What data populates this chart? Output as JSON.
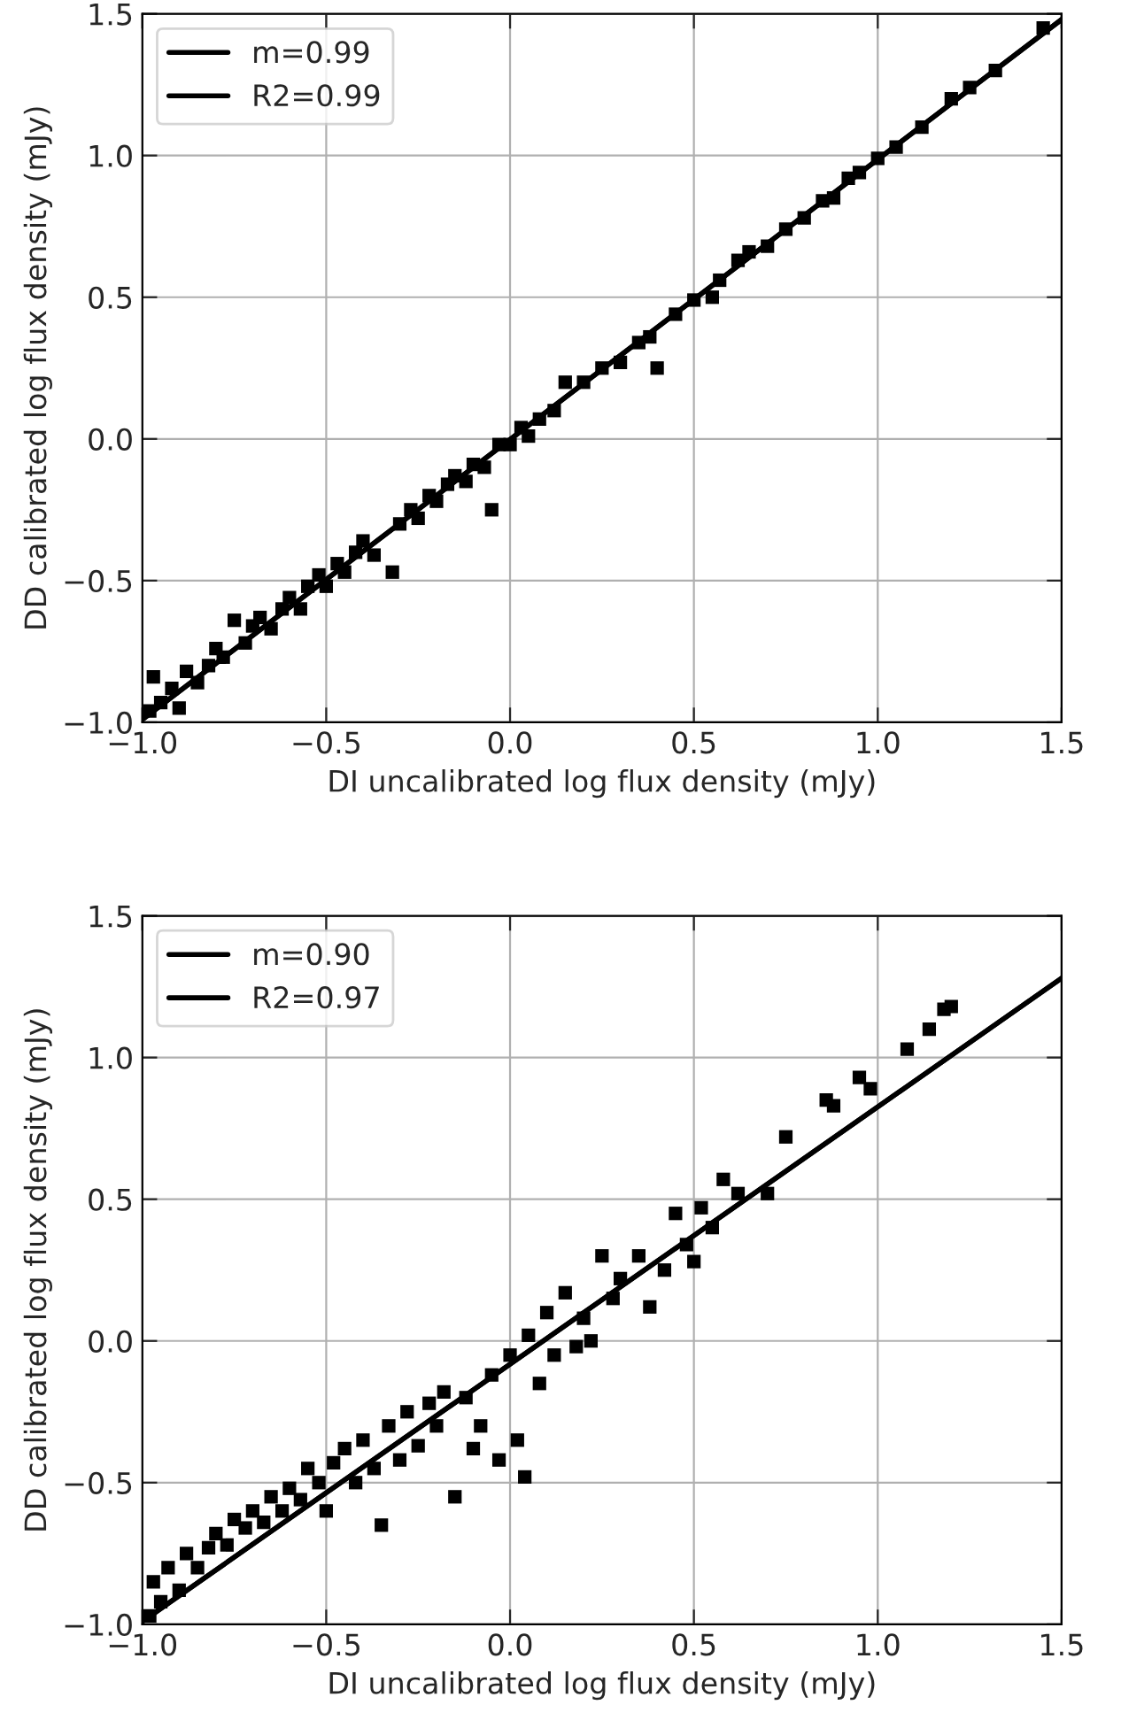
{
  "chart_data": [
    {
      "type": "scatter",
      "xlabel": "DI uncalibrated log flux density (mJy)",
      "ylabel": "DD calibrated log flux density (mJy)",
      "xlim": [
        -1.0,
        1.5
      ],
      "ylim": [
        -1.0,
        1.5
      ],
      "xticks": [
        {
          "value": -1.0,
          "label": "−1.0"
        },
        {
          "value": -0.5,
          "label": "−0.5"
        },
        {
          "value": 0.0,
          "label": "0.0"
        },
        {
          "value": 0.5,
          "label": "0.5"
        },
        {
          "value": 1.0,
          "label": "1.0"
        },
        {
          "value": 1.5,
          "label": "1.5"
        }
      ],
      "yticks": [
        {
          "value": -1.0,
          "label": "−1.0"
        },
        {
          "value": -0.5,
          "label": "−0.5"
        },
        {
          "value": 0.0,
          "label": "0.0"
        },
        {
          "value": 0.5,
          "label": "0.5"
        },
        {
          "value": 1.0,
          "label": "1.0"
        },
        {
          "value": 1.5,
          "label": "1.5"
        }
      ],
      "grid": true,
      "legend": "top left",
      "series": [
        {
          "marker": "square",
          "color": "#000000",
          "x": [
            -0.98,
            -0.97,
            -0.95,
            -0.92,
            -0.9,
            -0.88,
            -0.85,
            -0.82,
            -0.8,
            -0.78,
            -0.75,
            -0.72,
            -0.7,
            -0.68,
            -0.65,
            -0.62,
            -0.6,
            -0.57,
            -0.55,
            -0.52,
            -0.5,
            -0.47,
            -0.45,
            -0.42,
            -0.4,
            -0.37,
            -0.32,
            -0.3,
            -0.27,
            -0.25,
            -0.22,
            -0.2,
            -0.17,
            -0.15,
            -0.12,
            -0.1,
            -0.07,
            -0.05,
            -0.03,
            0.0,
            0.03,
            0.05,
            0.08,
            0.12,
            0.15,
            0.2,
            0.25,
            0.3,
            0.35,
            0.38,
            0.4,
            0.45,
            0.5,
            0.55,
            0.57,
            0.62,
            0.65,
            0.7,
            0.75,
            0.8,
            0.85,
            0.88,
            0.92,
            0.95,
            1.0,
            1.05,
            1.12,
            1.2,
            1.25,
            1.32,
            1.45
          ],
          "values": [
            -0.96,
            -0.84,
            -0.93,
            -0.88,
            -0.95,
            -0.82,
            -0.86,
            -0.8,
            -0.74,
            -0.77,
            -0.64,
            -0.72,
            -0.66,
            -0.63,
            -0.67,
            -0.6,
            -0.56,
            -0.6,
            -0.52,
            -0.48,
            -0.52,
            -0.44,
            -0.47,
            -0.4,
            -0.36,
            -0.41,
            -0.47,
            -0.3,
            -0.25,
            -0.28,
            -0.2,
            -0.22,
            -0.16,
            -0.13,
            -0.15,
            -0.09,
            -0.1,
            -0.25,
            -0.02,
            -0.02,
            0.04,
            0.01,
            0.07,
            0.1,
            0.2,
            0.2,
            0.25,
            0.27,
            0.34,
            0.36,
            0.25,
            0.44,
            0.49,
            0.5,
            0.56,
            0.63,
            0.66,
            0.68,
            0.74,
            0.78,
            0.84,
            0.85,
            0.92,
            0.94,
            0.99,
            1.03,
            1.1,
            1.2,
            1.24,
            1.3,
            1.45
          ]
        },
        {
          "type": "line",
          "name": "m=0.99",
          "color": "#000000",
          "x": [
            -1.0,
            1.5
          ],
          "values": [
            -0.99,
            1.48
          ]
        },
        {
          "type": "line",
          "name": "R2=0.99",
          "color": "#000000",
          "x": [
            -1.0,
            1.5
          ],
          "values": [
            -0.99,
            1.48
          ]
        }
      ]
    },
    {
      "type": "scatter",
      "xlabel": "DI uncalibrated log flux density (mJy)",
      "ylabel": "DD calibrated log flux density (mJy)",
      "xlim": [
        -1.0,
        1.5
      ],
      "ylim": [
        -1.0,
        1.5
      ],
      "xticks": [
        {
          "value": -1.0,
          "label": "−1.0"
        },
        {
          "value": -0.5,
          "label": "−0.5"
        },
        {
          "value": 0.0,
          "label": "0.0"
        },
        {
          "value": 0.5,
          "label": "0.5"
        },
        {
          "value": 1.0,
          "label": "1.0"
        },
        {
          "value": 1.5,
          "label": "1.5"
        }
      ],
      "yticks": [
        {
          "value": -1.0,
          "label": "−1.0"
        },
        {
          "value": -0.5,
          "label": "−0.5"
        },
        {
          "value": 0.0,
          "label": "0.0"
        },
        {
          "value": 0.5,
          "label": "0.5"
        },
        {
          "value": 1.0,
          "label": "1.0"
        },
        {
          "value": 1.5,
          "label": "1.5"
        }
      ],
      "grid": true,
      "legend": "top left",
      "series": [
        {
          "marker": "square",
          "color": "#000000",
          "x": [
            -0.98,
            -0.97,
            -0.95,
            -0.93,
            -0.9,
            -0.88,
            -0.85,
            -0.82,
            -0.8,
            -0.77,
            -0.75,
            -0.72,
            -0.7,
            -0.67,
            -0.65,
            -0.62,
            -0.6,
            -0.57,
            -0.55,
            -0.52,
            -0.5,
            -0.48,
            -0.45,
            -0.42,
            -0.4,
            -0.37,
            -0.35,
            -0.33,
            -0.3,
            -0.28,
            -0.25,
            -0.22,
            -0.2,
            -0.18,
            -0.15,
            -0.12,
            -0.1,
            -0.08,
            -0.05,
            -0.03,
            0.0,
            0.02,
            0.04,
            0.05,
            0.08,
            0.1,
            0.12,
            0.15,
            0.18,
            0.2,
            0.22,
            0.25,
            0.28,
            0.3,
            0.35,
            0.38,
            0.42,
            0.45,
            0.48,
            0.5,
            0.52,
            0.55,
            0.58,
            0.62,
            0.7,
            0.75,
            0.86,
            0.88,
            0.95,
            0.98,
            1.08,
            1.14,
            1.18,
            1.2
          ],
          "values": [
            -0.97,
            -0.85,
            -0.92,
            -0.8,
            -0.88,
            -0.75,
            -0.8,
            -0.73,
            -0.68,
            -0.72,
            -0.63,
            -0.66,
            -0.6,
            -0.64,
            -0.55,
            -0.6,
            -0.52,
            -0.56,
            -0.45,
            -0.5,
            -0.6,
            -0.43,
            -0.38,
            -0.5,
            -0.35,
            -0.45,
            -0.65,
            -0.3,
            -0.42,
            -0.25,
            -0.37,
            -0.22,
            -0.3,
            -0.18,
            -0.55,
            -0.2,
            -0.38,
            -0.3,
            -0.12,
            -0.42,
            -0.05,
            -0.35,
            -0.48,
            0.02,
            -0.15,
            0.1,
            -0.05,
            0.17,
            -0.02,
            0.08,
            0.0,
            0.3,
            0.15,
            0.22,
            0.3,
            0.12,
            0.25,
            0.45,
            0.34,
            0.28,
            0.47,
            0.4,
            0.57,
            0.52,
            0.52,
            0.72,
            0.85,
            0.83,
            0.93,
            0.89,
            1.03,
            1.1,
            1.17,
            1.18
          ]
        },
        {
          "type": "line",
          "name": "m=0.90",
          "color": "#000000",
          "x": [
            -1.0,
            1.5
          ],
          "values": [
            -0.99,
            1.28
          ]
        },
        {
          "type": "line",
          "name": "R2=0.97",
          "color": "#000000",
          "x": [
            -1.0,
            1.5
          ],
          "values": [
            -0.99,
            1.28
          ]
        }
      ]
    }
  ]
}
